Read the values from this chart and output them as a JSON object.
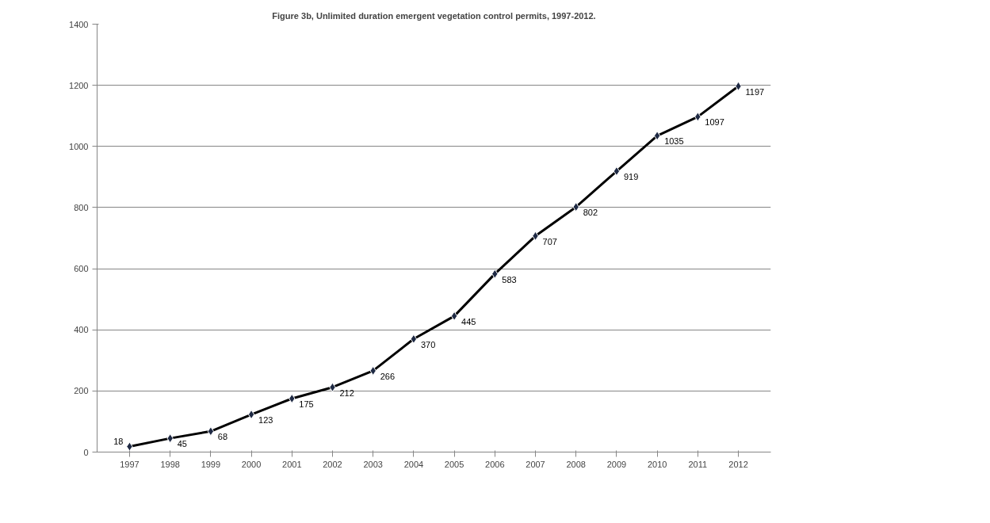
{
  "chart_data": {
    "type": "line",
    "title": "Figure 3b, Unlimited duration emergent vegetation control permits, 1997-2012.",
    "categories": [
      "1997",
      "1998",
      "1999",
      "2000",
      "2001",
      "2002",
      "2003",
      "2004",
      "2005",
      "2006",
      "2007",
      "2008",
      "2009",
      "2010",
      "2011",
      "2012"
    ],
    "series": [
      {
        "color": "#000000",
        "values": [
          18,
          45,
          68,
          123,
          175,
          212,
          266,
          370,
          445,
          583,
          707,
          802,
          919,
          1035,
          1097,
          1197
        ]
      }
    ],
    "ylim": [
      0,
      1400
    ],
    "yticks": [
      0,
      200,
      400,
      600,
      800,
      1000,
      1200,
      1400
    ],
    "grid": "y",
    "marker": "diamond",
    "line_style": "solid",
    "data_labels": true
  }
}
